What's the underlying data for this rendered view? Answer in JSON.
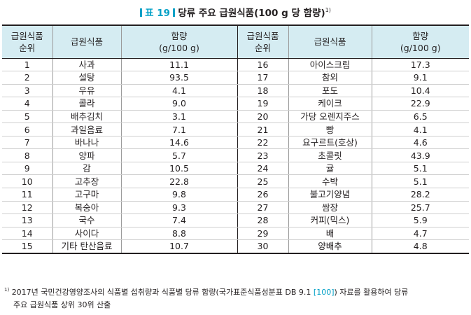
{
  "title": {
    "label": "표 19",
    "text": "당류 주요 급원식품(100 g 당 함량)",
    "sup": "1)"
  },
  "headers": {
    "rank": "급원식품\n순위",
    "food": "급원식품",
    "content": "함량\n(g/100 g)"
  },
  "rows": [
    {
      "r1": "1",
      "f1": "사과",
      "v1": "11.1",
      "r2": "16",
      "f2": "아이스크림",
      "v2": "17.3"
    },
    {
      "r1": "2",
      "f1": "설탕",
      "v1": "93.5",
      "r2": "17",
      "f2": "참외",
      "v2": "9.1"
    },
    {
      "r1": "3",
      "f1": "우유",
      "v1": "4.1",
      "r2": "18",
      "f2": "포도",
      "v2": "10.4"
    },
    {
      "r1": "4",
      "f1": "콜라",
      "v1": "9.0",
      "r2": "19",
      "f2": "케이크",
      "v2": "22.9"
    },
    {
      "r1": "5",
      "f1": "배추김치",
      "v1": "3.1",
      "r2": "20",
      "f2": "가당 오렌지주스",
      "v2": "6.5"
    },
    {
      "r1": "6",
      "f1": "과일음료",
      "v1": "7.1",
      "r2": "21",
      "f2": "빵",
      "v2": "4.1"
    },
    {
      "r1": "7",
      "f1": "바나나",
      "v1": "14.6",
      "r2": "22",
      "f2": "요구르트(호상)",
      "v2": "4.6"
    },
    {
      "r1": "8",
      "f1": "양파",
      "v1": "5.7",
      "r2": "23",
      "f2": "초콜릿",
      "v2": "43.9"
    },
    {
      "r1": "9",
      "f1": "감",
      "v1": "10.5",
      "r2": "24",
      "f2": "귤",
      "v2": "5.1"
    },
    {
      "r1": "10",
      "f1": "고추장",
      "v1": "22.8",
      "r2": "25",
      "f2": "수박",
      "v2": "5.1"
    },
    {
      "r1": "11",
      "f1": "고구마",
      "v1": "9.8",
      "r2": "26",
      "f2": "불고기양념",
      "v2": "28.2"
    },
    {
      "r1": "12",
      "f1": "복숭아",
      "v1": "9.3",
      "r2": "27",
      "f2": "쌈장",
      "v2": "25.7"
    },
    {
      "r1": "13",
      "f1": "국수",
      "v1": "7.4",
      "r2": "28",
      "f2": "커피(믹스)",
      "v2": "5.9"
    },
    {
      "r1": "14",
      "f1": "사이다",
      "v1": "8.8",
      "r2": "29",
      "f2": "배",
      "v2": "4.7"
    },
    {
      "r1": "15",
      "f1": "기타 탄산음료",
      "v1": "10.7",
      "r2": "30",
      "f2": "양배추",
      "v2": "4.8"
    }
  ],
  "footnote": {
    "sup": "1)",
    "text_before": "2017년 국민건강영양조사의 식품별 섭취량과 식품별 당류 함량(국가표준식품성분표 DB 9.1 ",
    "ref": "[100]",
    "text_after": ") 자료를 활용하여 당류",
    "line2": "주요 급원식품 상위 30위 산출"
  },
  "colors": {
    "accent": "#00a0c6",
    "header_bg": "#d5ecf2",
    "text": "#231f20"
  }
}
